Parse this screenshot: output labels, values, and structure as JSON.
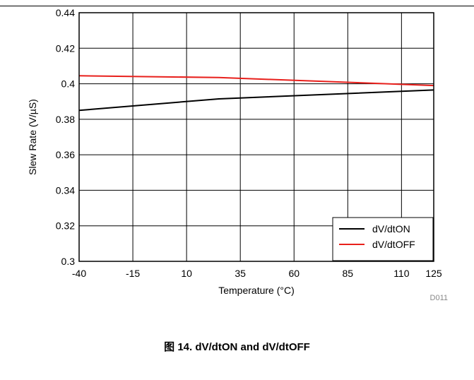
{
  "figure": {
    "caption": "图 14. dV/dtON and dV/dtOFF",
    "id_label": "D011"
  },
  "chart_data": {
    "type": "line",
    "xlabel": "Temperature (°C)",
    "ylabel": "Slew Rate (V/µS)",
    "xlim": [
      -40,
      125
    ],
    "ylim": [
      0.3,
      0.44
    ],
    "x_ticks": [
      -40,
      -15,
      10,
      35,
      60,
      85,
      110,
      125
    ],
    "y_ticks": [
      0.3,
      0.32,
      0.34,
      0.36,
      0.38,
      0.4,
      0.42,
      0.44
    ],
    "y_tick_labels": [
      "0.3",
      "0.32",
      "0.34",
      "0.36",
      "0.38",
      "0.4",
      "0.42",
      "0.44"
    ],
    "grid": true,
    "legend_position": "bottom-right",
    "series": [
      {
        "name": "dV/dtON",
        "color": "#000000",
        "x": [
          -40,
          25,
          125
        ],
        "y": [
          0.385,
          0.3915,
          0.3965
        ]
      },
      {
        "name": "dV/dtOFF",
        "color": "#e8201c",
        "x": [
          -40,
          25,
          125
        ],
        "y": [
          0.4045,
          0.4035,
          0.399
        ]
      }
    ]
  }
}
